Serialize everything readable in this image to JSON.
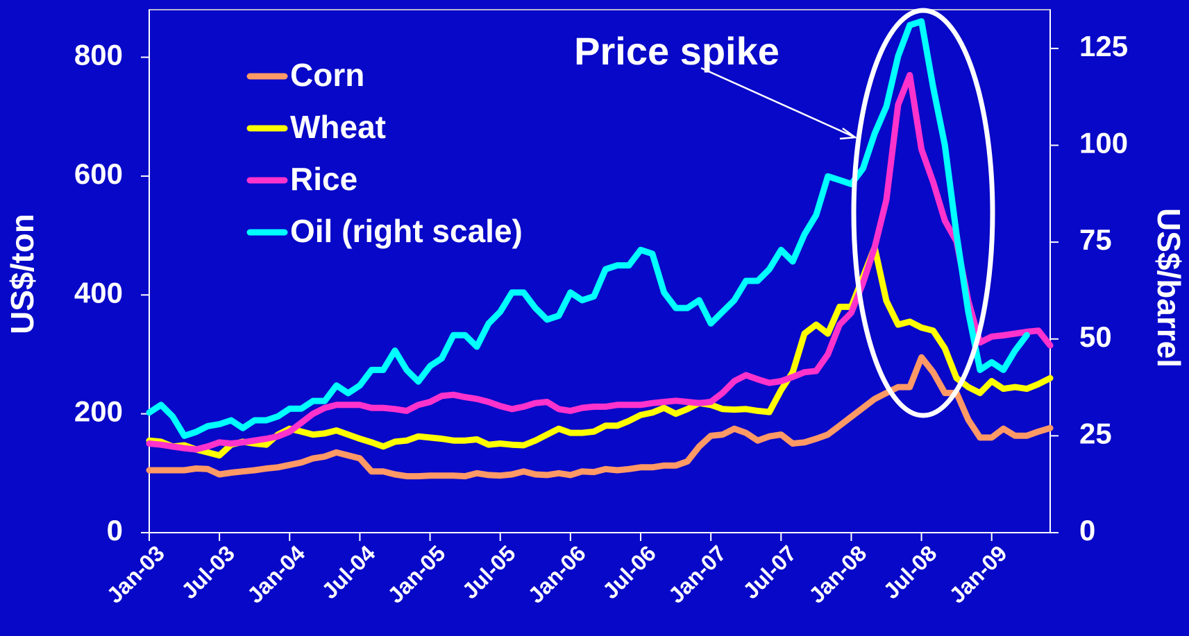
{
  "chart_data": {
    "type": "line",
    "annotation": "Price spike",
    "ylabel": "US$/ton",
    "y2label": "US$/barrel",
    "categories": [
      "Jan-03",
      null,
      null,
      null,
      null,
      null,
      "Jul-03",
      null,
      null,
      null,
      null,
      null,
      "Jan-04",
      null,
      null,
      null,
      null,
      null,
      "Jul-04",
      null,
      null,
      null,
      null,
      null,
      "Jan-05",
      null,
      null,
      null,
      null,
      null,
      "Jul-05",
      null,
      null,
      null,
      null,
      null,
      "Jan-06",
      null,
      null,
      null,
      null,
      null,
      "Jul-06",
      null,
      null,
      null,
      null,
      null,
      "Jan-07",
      null,
      null,
      null,
      null,
      null,
      "Jul-07",
      null,
      null,
      null,
      null,
      null,
      "Jan-08",
      null,
      null,
      null,
      null,
      null,
      "Jul-08",
      null,
      null,
      null,
      null,
      null,
      "Jan-09",
      null,
      null,
      null,
      null,
      null
    ],
    "ylim": [
      0,
      880
    ],
    "yticks": [
      0,
      200,
      400,
      600,
      800
    ],
    "y2lim": [
      0,
      135
    ],
    "y2ticks": [
      0,
      25,
      50,
      75,
      100,
      125
    ],
    "legend": "upper left",
    "series": [
      {
        "name": "Corn",
        "color": "#ff9966",
        "values": [
          105,
          105,
          105,
          105,
          108,
          107,
          98,
          101,
          103,
          105,
          108,
          110,
          114,
          118,
          125,
          128,
          135,
          130,
          125,
          103,
          103,
          98,
          95,
          95,
          96,
          96,
          96,
          95,
          100,
          97,
          96,
          98,
          103,
          98,
          97,
          100,
          97,
          103,
          102,
          107,
          105,
          107,
          110,
          110,
          113,
          113,
          120,
          145,
          163,
          165,
          175,
          168,
          155,
          162,
          165,
          150,
          152,
          158,
          165,
          180,
          195,
          210,
          225,
          235,
          245,
          245,
          295,
          270,
          235,
          235,
          190,
          160,
          160,
          175,
          163,
          163,
          170,
          176
        ]
      },
      {
        "name": "Wheat",
        "color": "#ffff00",
        "values": [
          155,
          153,
          145,
          147,
          140,
          135,
          130,
          148,
          153,
          150,
          148,
          165,
          175,
          170,
          165,
          167,
          172,
          165,
          158,
          152,
          145,
          153,
          155,
          162,
          160,
          158,
          155,
          155,
          157,
          148,
          150,
          148,
          147,
          155,
          165,
          175,
          168,
          168,
          170,
          180,
          180,
          188,
          198,
          202,
          210,
          200,
          208,
          218,
          215,
          208,
          207,
          208,
          205,
          203,
          240,
          270,
          335,
          350,
          335,
          380,
          380,
          430,
          480,
          390,
          350,
          355,
          345,
          340,
          310,
          260,
          245,
          235,
          255,
          242,
          245,
          242,
          250,
          260
        ]
      },
      {
        "name": "Rice",
        "color": "#ff33cc",
        "values": [
          150,
          148,
          145,
          142,
          140,
          145,
          152,
          150,
          152,
          155,
          158,
          162,
          170,
          185,
          200,
          210,
          215,
          215,
          215,
          210,
          210,
          208,
          205,
          215,
          220,
          230,
          232,
          228,
          225,
          220,
          213,
          208,
          212,
          218,
          220,
          208,
          205,
          210,
          212,
          212,
          215,
          215,
          215,
          218,
          220,
          222,
          220,
          218,
          220,
          235,
          255,
          265,
          258,
          252,
          255,
          262,
          270,
          272,
          300,
          350,
          370,
          420,
          480,
          560,
          720,
          770,
          645,
          590,
          525,
          490,
          390,
          320,
          330,
          332,
          335,
          338,
          340,
          315
        ]
      },
      {
        "name": "Oil (right scale)",
        "color": "#00ffff",
        "axis": "y2",
        "values": [
          31,
          33,
          30,
          25,
          26,
          27.5,
          28,
          29,
          27,
          29,
          29,
          30,
          32,
          32,
          34,
          34,
          38,
          36,
          38,
          42,
          42,
          47,
          42,
          39,
          43,
          45,
          51,
          51,
          48,
          54,
          57,
          62,
          62,
          58,
          55,
          56,
          62,
          60,
          61,
          68,
          69,
          69,
          73,
          72,
          62,
          58,
          58,
          60,
          54,
          57,
          60,
          65,
          65,
          68,
          73,
          70,
          77,
          82,
          92,
          91,
          90,
          94,
          103,
          110,
          123,
          131,
          132,
          115,
          100,
          77,
          57,
          42,
          44,
          42,
          47,
          51,
          null,
          null
        ]
      }
    ]
  }
}
